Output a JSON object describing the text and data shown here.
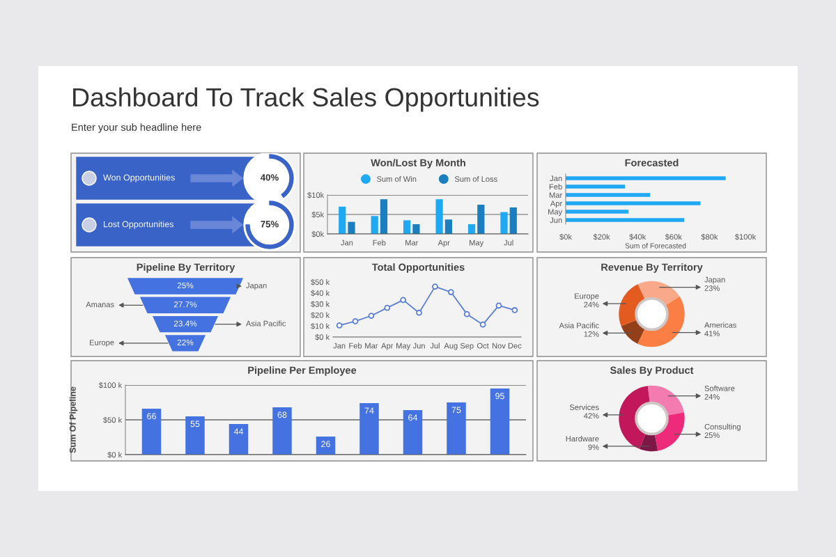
{
  "chart_data": [
    {
      "type": "other",
      "title": "Dashboard To Track Sales Opportunities",
      "subtitle": "Enter your sub headline here"
    },
    {
      "type": "other",
      "categories": [
        "Won Opportunities",
        "Lost Opportunities"
      ],
      "values": [
        40,
        75
      ],
      "value_labels": [
        "40%",
        "75%"
      ]
    },
    {
      "type": "bar",
      "title": "Won/Lost By Month",
      "categories": [
        "Jan",
        "Feb",
        "Mar",
        "Apr",
        "May",
        "Jul"
      ],
      "series": [
        {
          "name": "Sum of Win",
          "color": "#1fa9f3",
          "values": [
            7.0,
            4.6,
            3.5,
            8.9,
            2.5,
            5.6
          ]
        },
        {
          "name": "Sum of Loss",
          "color": "#1b7fbf",
          "values": [
            3.1,
            8.9,
            2.5,
            3.7,
            7.5,
            6.8
          ]
        }
      ],
      "ylim": [
        0,
        10
      ],
      "yticks": [
        {
          "value": 0,
          "label": "$0k"
        },
        {
          "value": 5,
          "label": "$5k"
        },
        {
          "value": 10,
          "label": "$10k"
        }
      ],
      "grid": "y",
      "legend": "top"
    },
    {
      "type": "bar",
      "orientation": "horizontal",
      "title": "Forecasted",
      "xlabel": "Sum of Forecasted",
      "categories": [
        "Jan",
        "Feb",
        "Mar",
        "Apr",
        "May",
        "Jun"
      ],
      "values": [
        89,
        33,
        47,
        75,
        35,
        66
      ],
      "color": "#1fa9f3",
      "xlim": [
        0,
        100
      ],
      "xticks": [
        {
          "value": 0,
          "label": "$0k"
        },
        {
          "value": 20,
          "label": "$20k"
        },
        {
          "value": 40,
          "label": "$40k"
        },
        {
          "value": 60,
          "label": "$60k"
        },
        {
          "value": 80,
          "label": "$80k"
        },
        {
          "value": 100,
          "label": "$100k"
        }
      ]
    },
    {
      "type": "other",
      "title": "Pipeline By Territory",
      "categories": [
        "Japan",
        "Amanas",
        "Asia Pacific",
        "Europe"
      ],
      "value_labels": [
        "25%",
        "27.7%",
        "23.4%",
        "22%"
      ],
      "color": "#4472e0"
    },
    {
      "type": "line",
      "title": "Total Opportunities",
      "categories": [
        "Jan",
        "Feb",
        "Mar",
        "Apr",
        "May",
        "Jun",
        "Jul",
        "Aug",
        "Sep",
        "Oct",
        "Nov",
        "Dec"
      ],
      "series": [
        {
          "color": "#5b7fd6",
          "values": [
            10.5,
            14.3,
            19.3,
            26.5,
            33.6,
            22,
            45.8,
            40.8,
            20.8,
            11.3,
            28.6,
            24.4
          ]
        }
      ],
      "ylim": [
        0,
        50
      ],
      "yticks": [
        {
          "value": 0,
          "label": "$0 k"
        },
        {
          "value": 10,
          "label": "$10 k"
        },
        {
          "value": 20,
          "label": "$20 k"
        },
        {
          "value": 30,
          "label": "$30 k"
        },
        {
          "value": 40,
          "label": "$40 k"
        },
        {
          "value": 50,
          "label": "$50 k"
        }
      ],
      "marker": "circle"
    },
    {
      "type": "donut",
      "title": "Revenue By Territory",
      "categories": [
        "Japan",
        "Americas",
        "Asia Pacific",
        "Europe"
      ],
      "values": [
        23,
        41,
        12,
        24
      ],
      "value_labels": [
        "23%",
        "41%",
        "12%",
        "24%"
      ],
      "colors": [
        "#f9a98a",
        "#fb7f45",
        "#93401a",
        "#e35b1f"
      ]
    },
    {
      "type": "bar",
      "title": "Pipeline Per Employee",
      "ylabel": "Sum Of Pipeline",
      "categories": [
        null,
        null,
        null,
        null,
        null,
        null,
        null,
        null,
        null
      ],
      "values": [
        66,
        55,
        44,
        68,
        26,
        74,
        64,
        75,
        95
      ],
      "color": "#4472e0",
      "ylim": [
        0,
        100
      ],
      "yticks": [
        {
          "value": 0,
          "label": "$0 k"
        },
        {
          "value": 50,
          "label": "$50 k"
        },
        {
          "value": 100,
          "label": "$100 k"
        }
      ],
      "grid": "y",
      "data_labels": true,
      "tick_labels": "y"
    },
    {
      "type": "donut",
      "title": "Sales By Product",
      "categories": [
        "Software",
        "Consulting",
        "Hardware",
        "Services"
      ],
      "values": [
        24,
        25,
        9,
        42
      ],
      "value_labels": [
        "24%",
        "25%",
        "9%",
        "42%"
      ],
      "colors": [
        "#f47bb0",
        "#ee2a7b",
        "#7d1746",
        "#c2185b"
      ]
    }
  ]
}
